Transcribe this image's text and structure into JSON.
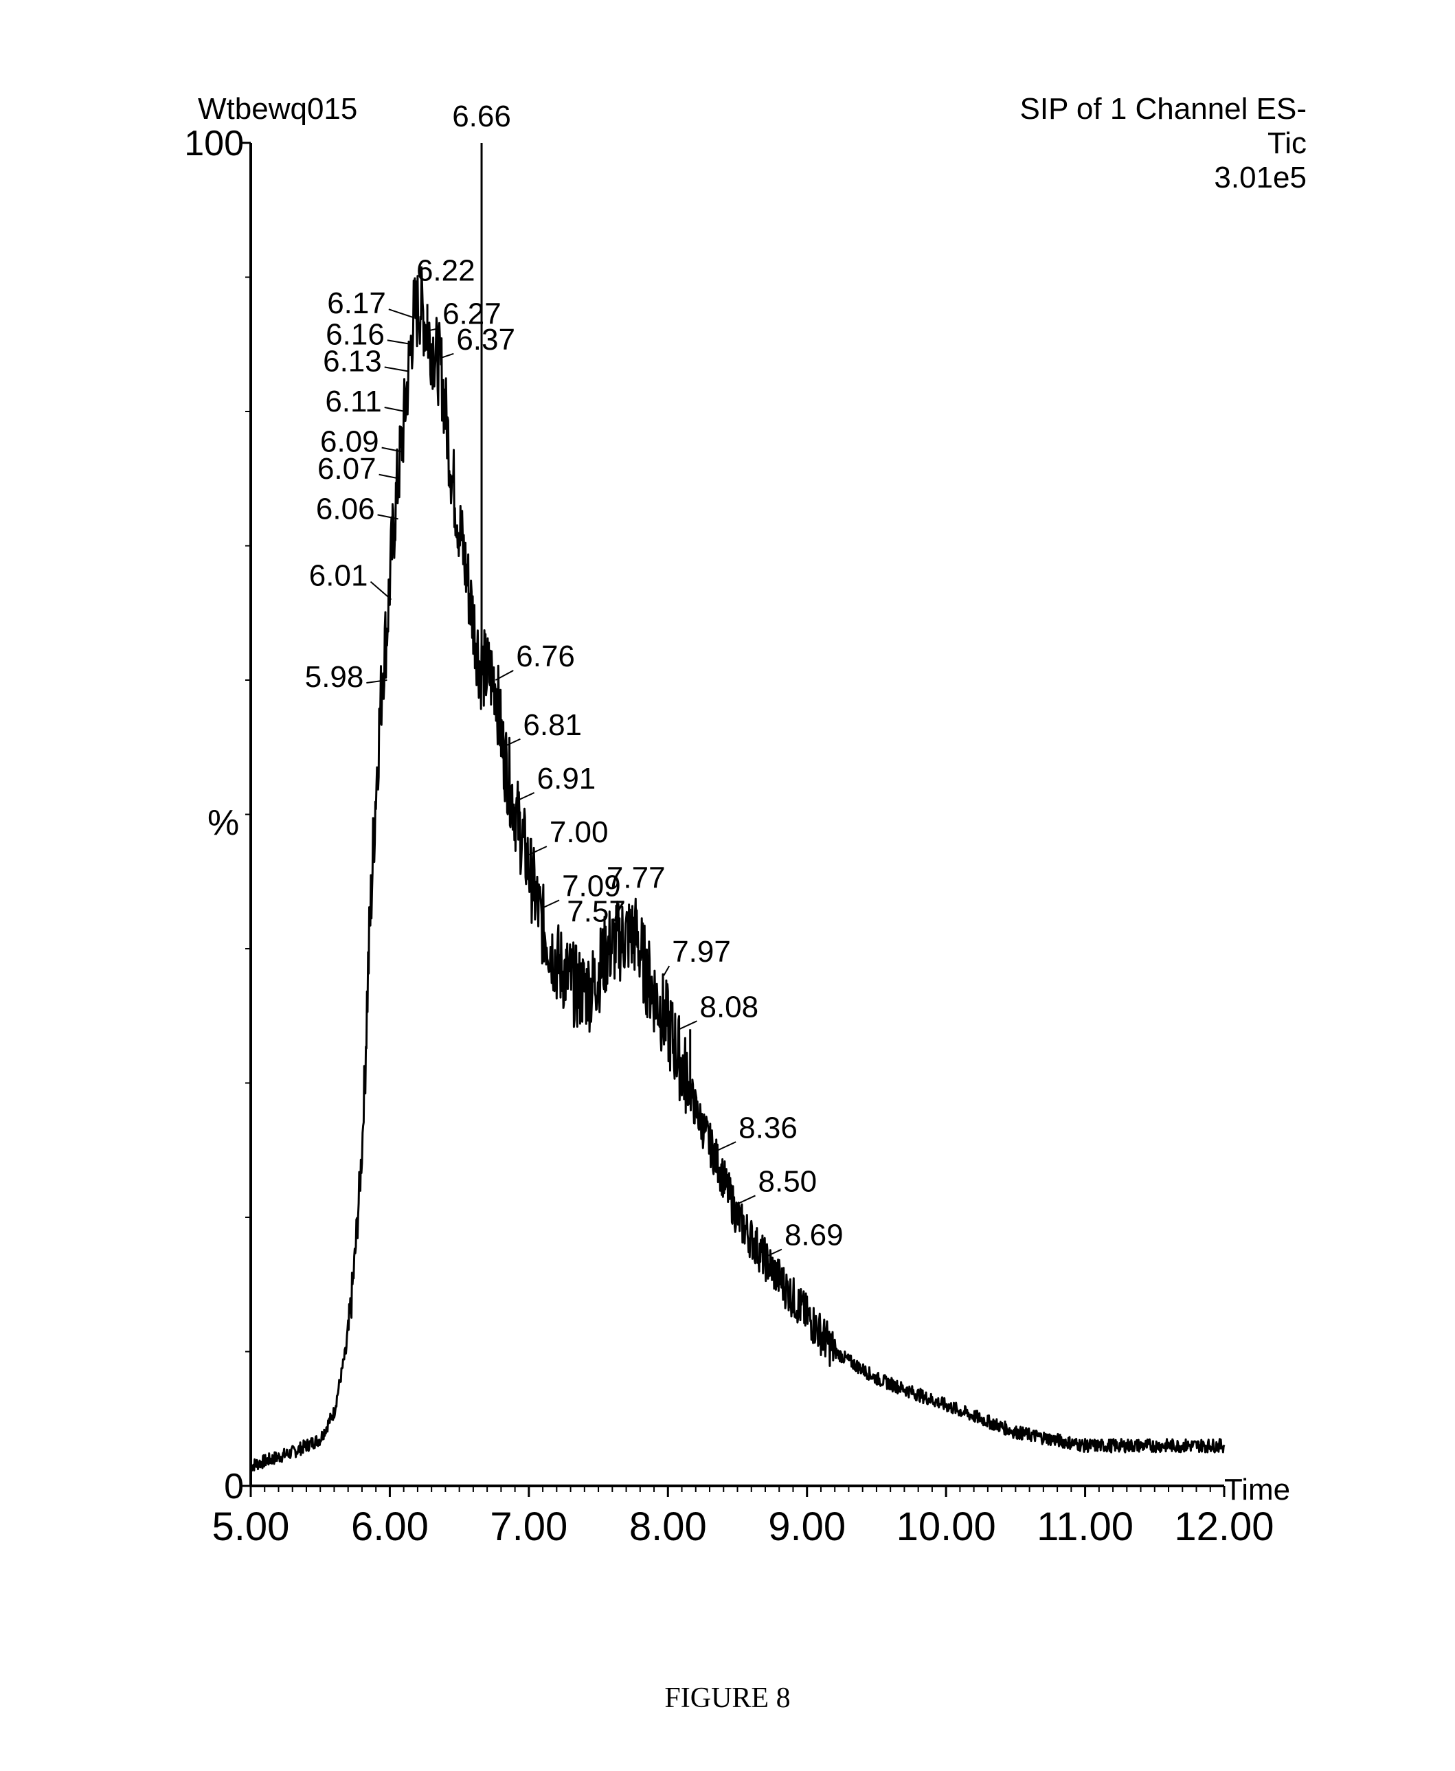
{
  "figure_caption": "FIGURE 8",
  "chart_data": {
    "type": "line",
    "sample_name": "Wtbewq015",
    "trace_info": [
      "SIP of 1 Channel ES-",
      "Tic",
      "3.01e5"
    ],
    "ylabel": "%",
    "xlabel": "Time",
    "xlim": [
      5.0,
      12.0
    ],
    "ylim": [
      0,
      100
    ],
    "x_ticks": [
      "5.00",
      "6.00",
      "7.00",
      "8.00",
      "9.00",
      "10.00",
      "11.00",
      "12.00"
    ],
    "y_ticks": [
      "0",
      "100"
    ],
    "series": [
      {
        "x": [
          5.0,
          5.3,
          5.5,
          5.6,
          5.7,
          5.75,
          5.8,
          5.85,
          5.9,
          5.95,
          5.98,
          6.01,
          6.05,
          6.1,
          6.17,
          6.22,
          6.27,
          6.37,
          6.45,
          6.55,
          6.65,
          6.76,
          6.81,
          6.91,
          7.0,
          7.09,
          7.2,
          7.35,
          7.45,
          7.57,
          7.7,
          7.77,
          7.85,
          7.97,
          8.08,
          8.2,
          8.36,
          8.5,
          8.69,
          8.9,
          9.2,
          9.5,
          10.0,
          10.5,
          11.0,
          11.5,
          12.0
        ],
        "y": [
          1.5,
          2.5,
          3.5,
          5.5,
          11,
          17,
          25,
          40,
          52,
          61,
          64,
          69,
          74,
          79,
          87,
          88,
          86,
          83,
          75,
          68,
          61,
          60,
          55,
          50,
          46,
          42,
          39,
          37,
          37,
          40,
          41,
          41,
          38,
          35,
          32,
          28,
          24,
          20,
          17,
          14,
          10,
          8,
          6,
          4,
          3,
          3,
          3
        ]
      }
    ],
    "spikes": [
      {
        "x": 6.66,
        "y": 100
      },
      {
        "x": 6.27,
        "y": 88
      },
      {
        "x": 7.77,
        "y": 43
      },
      {
        "x": 8.16,
        "y": 34
      }
    ],
    "peak_labels": [
      {
        "x": 6.66,
        "y": 100,
        "text": "6.66"
      },
      {
        "x": 6.22,
        "y": 88,
        "text": "6.22"
      },
      {
        "x": 6.17,
        "y": 87,
        "text": "6.17"
      },
      {
        "x": 6.27,
        "y": 86,
        "text": "6.27"
      },
      {
        "x": 6.16,
        "y": 85,
        "text": "6.16"
      },
      {
        "x": 6.37,
        "y": 84,
        "text": "6.37"
      },
      {
        "x": 6.13,
        "y": 83,
        "text": "6.13"
      },
      {
        "x": 6.11,
        "y": 80,
        "text": "6.11"
      },
      {
        "x": 6.09,
        "y": 77,
        "text": "6.09"
      },
      {
        "x": 6.07,
        "y": 75,
        "text": "6.07"
      },
      {
        "x": 6.06,
        "y": 72,
        "text": "6.06"
      },
      {
        "x": 6.01,
        "y": 66,
        "text": "6.01"
      },
      {
        "x": 5.98,
        "y": 60,
        "text": "5.98"
      },
      {
        "x": 6.76,
        "y": 60,
        "text": "6.76"
      },
      {
        "x": 6.81,
        "y": 55,
        "text": "6.81"
      },
      {
        "x": 6.91,
        "y": 51,
        "text": "6.91"
      },
      {
        "x": 7.0,
        "y": 47,
        "text": "7.00"
      },
      {
        "x": 7.09,
        "y": 43,
        "text": "7.09"
      },
      {
        "x": 7.57,
        "y": 41,
        "text": "7.57"
      },
      {
        "x": 7.77,
        "y": 43,
        "text": "7.77"
      },
      {
        "x": 7.97,
        "y": 38,
        "text": "7.97"
      },
      {
        "x": 8.08,
        "y": 34,
        "text": "8.08"
      },
      {
        "x": 8.36,
        "y": 25,
        "text": "8.36"
      },
      {
        "x": 8.5,
        "y": 21,
        "text": "8.50"
      },
      {
        "x": 8.69,
        "y": 17,
        "text": "8.69"
      }
    ]
  }
}
